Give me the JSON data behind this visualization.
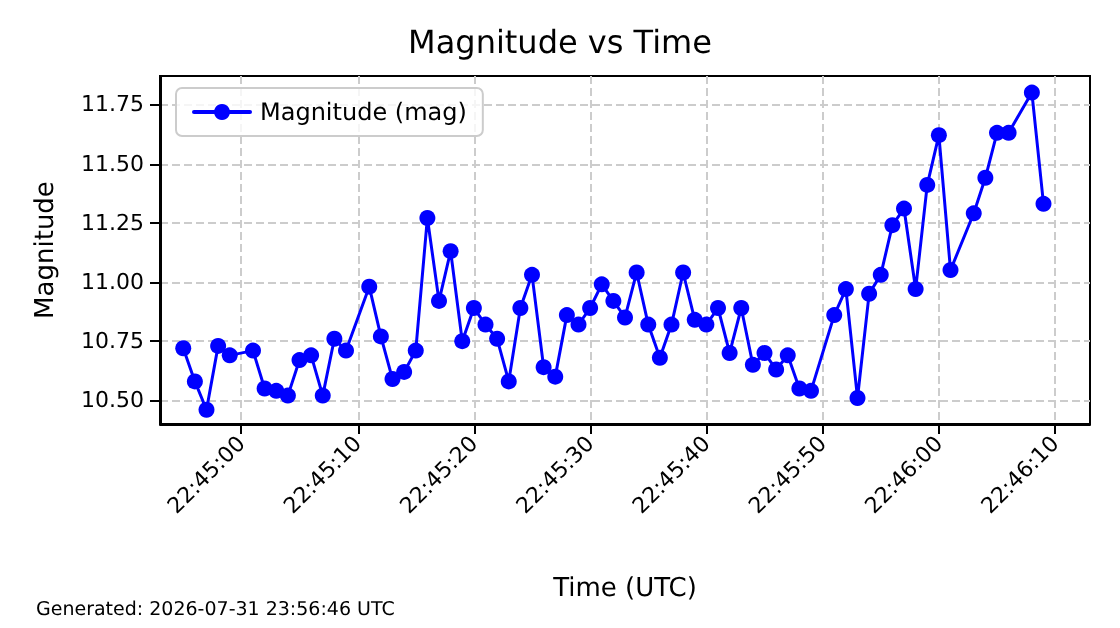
{
  "chart_data": {
    "type": "line",
    "title": "Magnitude vs Time",
    "xlabel": "Time (UTC)",
    "ylabel": "Magnitude",
    "annotations": [
      "Generated: 2026-07-31 23:56:46 UTC"
    ],
    "x": [
      "2026-07-31T22:44:55",
      "2026-07-31T22:44:56",
      "2026-07-31T22:44:57",
      "2026-07-31T22:44:58",
      "2026-07-31T22:44:59",
      "2026-07-31T22:45:01",
      "2026-07-31T22:45:02",
      "2026-07-31T22:45:03",
      "2026-07-31T22:45:04",
      "2026-07-31T22:45:05",
      "2026-07-31T22:45:06",
      "2026-07-31T22:45:07",
      "2026-07-31T22:45:08",
      "2026-07-31T22:45:09",
      "2026-07-31T22:45:11",
      "2026-07-31T22:45:12",
      "2026-07-31T22:45:13",
      "2026-07-31T22:45:14",
      "2026-07-31T22:45:15",
      "2026-07-31T22:45:16",
      "2026-07-31T22:45:17",
      "2026-07-31T22:45:18",
      "2026-07-31T22:45:19",
      "2026-07-31T22:45:20",
      "2026-07-31T22:45:21",
      "2026-07-31T22:45:22",
      "2026-07-31T22:45:23",
      "2026-07-31T22:45:24",
      "2026-07-31T22:45:25",
      "2026-07-31T22:45:26",
      "2026-07-31T22:45:27",
      "2026-07-31T22:45:28",
      "2026-07-31T22:45:29",
      "2026-07-31T22:45:30",
      "2026-07-31T22:45:31",
      "2026-07-31T22:45:32",
      "2026-07-31T22:45:33",
      "2026-07-31T22:45:34",
      "2026-07-31T22:45:35",
      "2026-07-31T22:45:36",
      "2026-07-31T22:45:37",
      "2026-07-31T22:45:38",
      "2026-07-31T22:45:39",
      "2026-07-31T22:45:40",
      "2026-07-31T22:45:41",
      "2026-07-31T22:45:42",
      "2026-07-31T22:45:43",
      "2026-07-31T22:45:44",
      "2026-07-31T22:45:45",
      "2026-07-31T22:45:46",
      "2026-07-31T22:45:47",
      "2026-07-31T22:45:48",
      "2026-07-31T22:45:49",
      "2026-07-31T22:45:51",
      "2026-07-31T22:45:52",
      "2026-07-31T22:45:53",
      "2026-07-31T22:45:54",
      "2026-07-31T22:45:55",
      "2026-07-31T22:45:56",
      "2026-07-31T22:45:57",
      "2026-07-31T22:45:58",
      "2026-07-31T22:45:59",
      "2026-07-31T22:46:00",
      "2026-07-31T22:46:01",
      "2026-07-31T22:46:03",
      "2026-07-31T22:46:04",
      "2026-07-31T22:46:05",
      "2026-07-31T22:46:06",
      "2026-07-31T22:46:08",
      "2026-07-31T22:46:09"
    ],
    "series": [
      {
        "name": "Magnitude (mag)",
        "color": "#0000ff",
        "values": [
          10.72,
          10.58,
          10.46,
          10.73,
          10.69,
          10.71,
          10.55,
          10.54,
          10.52,
          10.67,
          10.69,
          10.52,
          10.76,
          10.71,
          10.98,
          10.77,
          10.59,
          10.62,
          10.71,
          11.27,
          10.92,
          11.13,
          10.75,
          10.89,
          10.82,
          10.76,
          10.58,
          10.89,
          11.03,
          10.64,
          10.6,
          10.86,
          10.82,
          10.89,
          10.99,
          10.92,
          10.85,
          11.04,
          10.82,
          10.68,
          10.82,
          11.04,
          10.84,
          10.82,
          10.89,
          10.7,
          10.89,
          10.65,
          10.7,
          10.63,
          10.69,
          10.55,
          10.54,
          10.86,
          10.97,
          10.51,
          10.95,
          11.03,
          11.24,
          11.31,
          10.97,
          11.41,
          11.62,
          11.05,
          11.29,
          11.44,
          11.63,
          11.63,
          11.8,
          11.33
        ]
      }
    ],
    "xlim": [
      "2026-07-31T22:44:53",
      "2026-07-31T22:46:13"
    ],
    "xticks": [
      {
        "value": "2026-07-31T22:45:00",
        "label": "22:45:00"
      },
      {
        "value": "2026-07-31T22:45:10",
        "label": "22:45:10"
      },
      {
        "value": "2026-07-31T22:45:20",
        "label": "22:45:20"
      },
      {
        "value": "2026-07-31T22:45:30",
        "label": "22:45:30"
      },
      {
        "value": "2026-07-31T22:45:40",
        "label": "22:45:40"
      },
      {
        "value": "2026-07-31T22:45:50",
        "label": "22:45:50"
      },
      {
        "value": "2026-07-31T22:46:00",
        "label": "22:46:00"
      },
      {
        "value": "2026-07-31T22:46:10",
        "label": "22:46:10"
      }
    ],
    "ylim": [
      10.4,
      11.87
    ],
    "yticks": [
      {
        "value": 10.5,
        "label": "10.50"
      },
      {
        "value": 10.75,
        "label": "10.75"
      },
      {
        "value": 11,
        "label": "11.00"
      },
      {
        "value": 11.25,
        "label": "11.25"
      },
      {
        "value": 11.5,
        "label": "11.50"
      },
      {
        "value": 11.75,
        "label": "11.75"
      }
    ],
    "grid": true,
    "legend": "top left",
    "marker": "circle",
    "line_style": "solid"
  }
}
